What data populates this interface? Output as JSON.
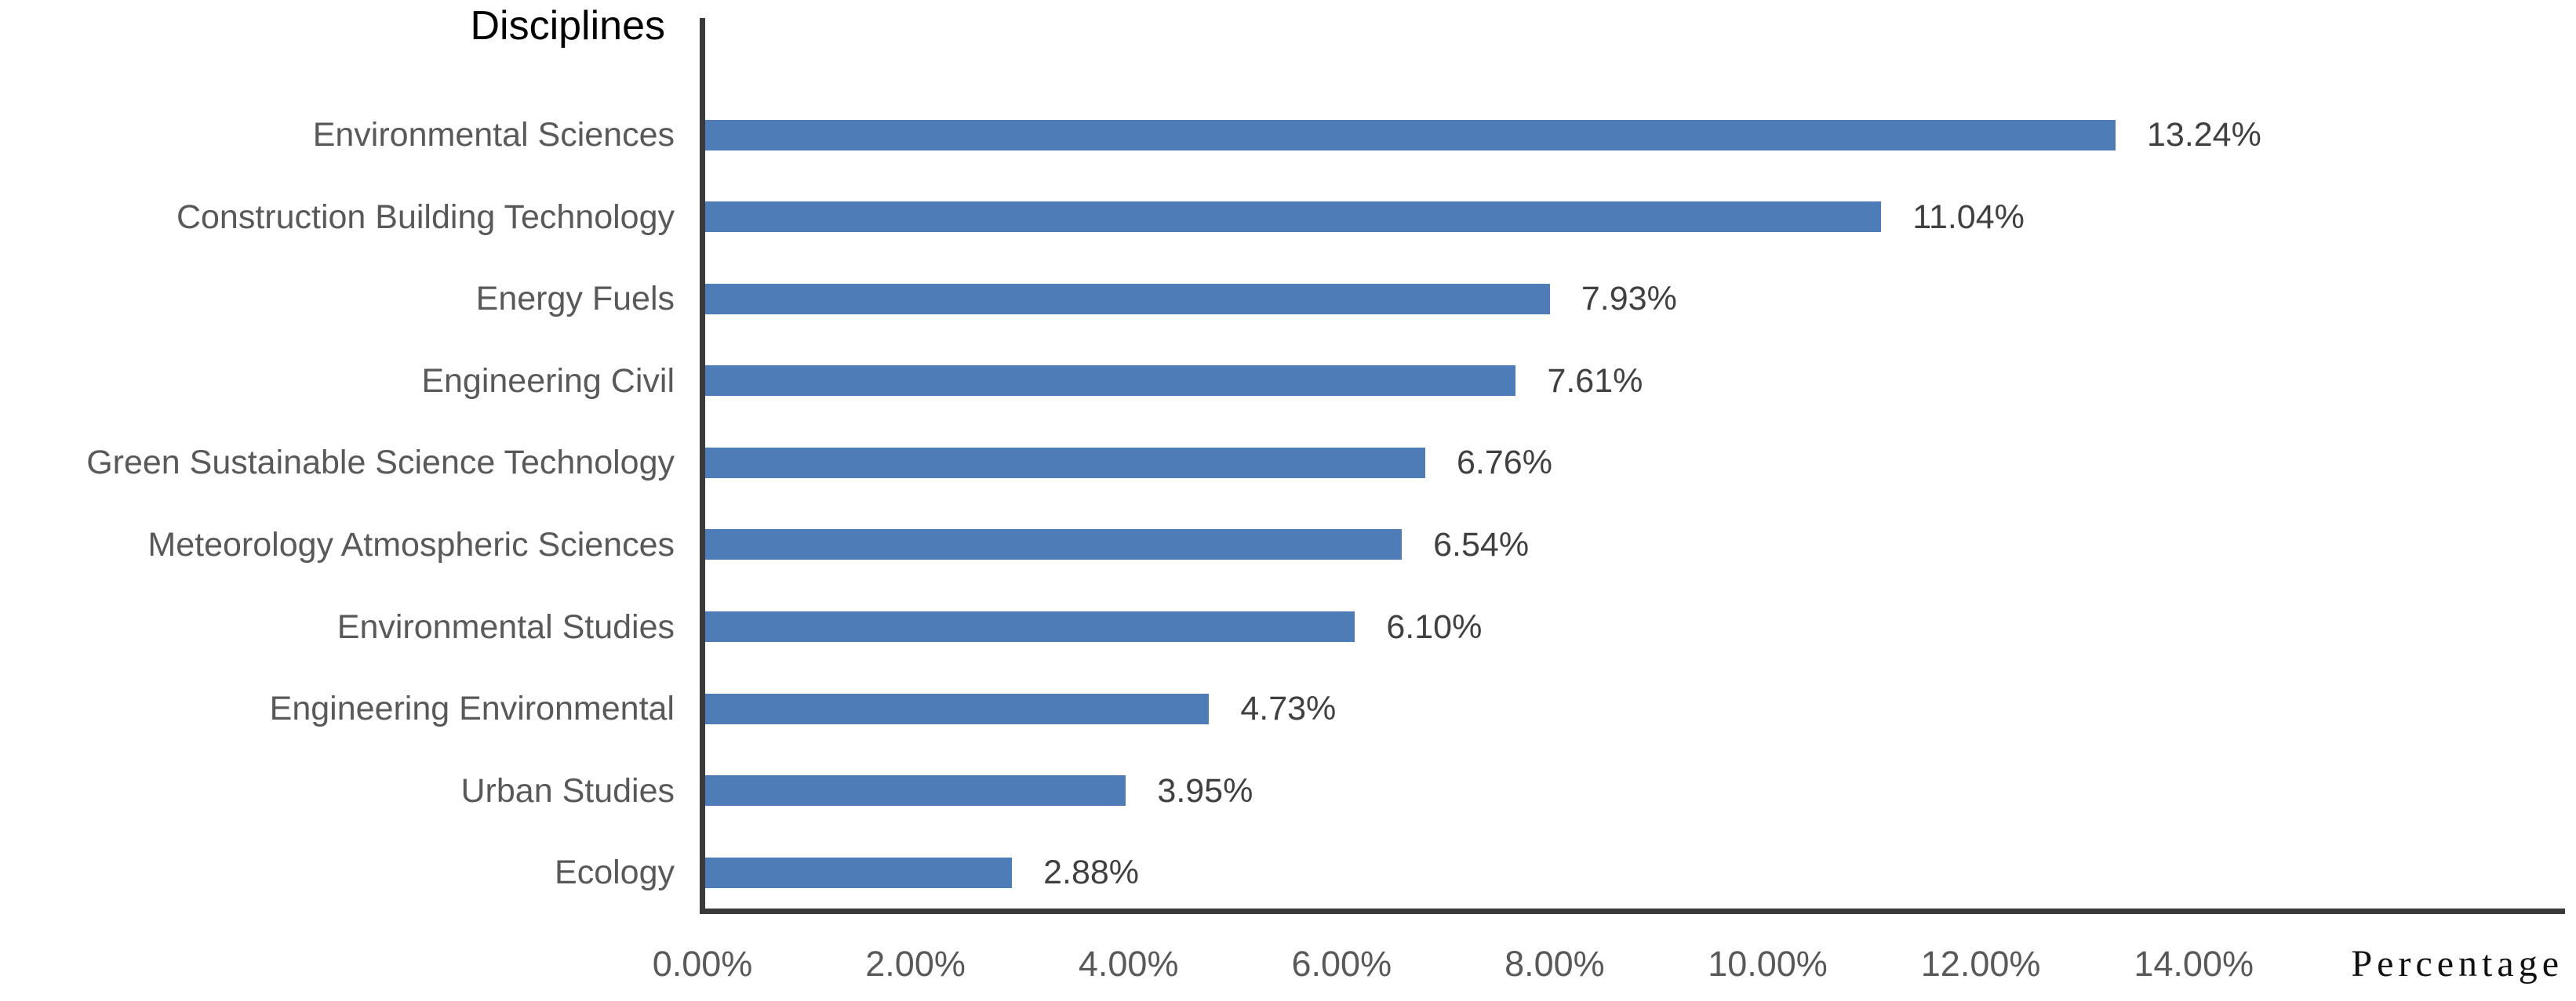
{
  "chart_data": {
    "type": "bar",
    "orientation": "horizontal",
    "title": "Disciplines",
    "xlabel": "Percentage",
    "categories": [
      "Environmental Sciences",
      "Construction Building Technology",
      "Energy Fuels",
      "Engineering Civil",
      "Green Sustainable Science Technology",
      "Meteorology Atmospheric Sciences",
      "Environmental Studies",
      "Engineering Environmental",
      "Urban Studies",
      "Ecology"
    ],
    "values": [
      13.24,
      11.04,
      7.93,
      7.61,
      6.76,
      6.54,
      6.1,
      4.73,
      3.95,
      2.88
    ],
    "value_labels": [
      "13.24%",
      "11.04%",
      "7.93%",
      "7.61%",
      "6.76%",
      "6.54%",
      "6.10%",
      "4.73%",
      "3.95%",
      "2.88%"
    ],
    "x_ticks": [
      "0.00%",
      "2.00%",
      "4.00%",
      "6.00%",
      "8.00%",
      "10.00%",
      "12.00%",
      "14.00%"
    ],
    "x_tick_step": 2,
    "xlim": [
      0,
      14
    ],
    "grid": false,
    "legend": false,
    "bar_color": "#4D7CB7",
    "axis_color": "#3a3a3a",
    "category_text_color": "#595959",
    "value_text_color": "#404040",
    "title_color": "#000000"
  }
}
